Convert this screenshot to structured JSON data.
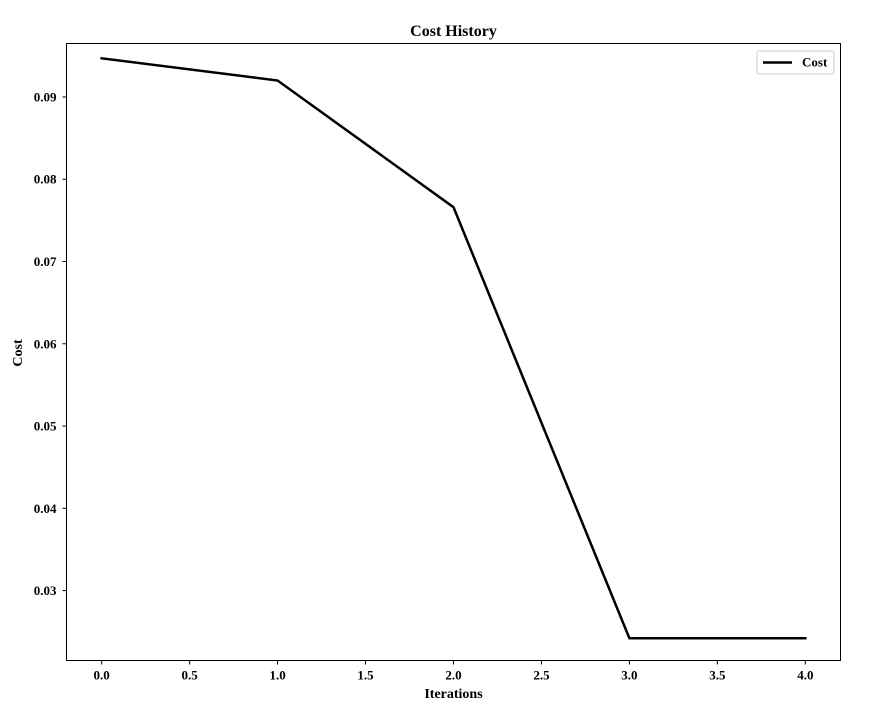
{
  "chart_data": {
    "type": "line",
    "title": "Cost History",
    "xlabel": "Iterations",
    "ylabel": "Cost",
    "xlim": [
      -0.2,
      4.2
    ],
    "ylim": [
      0.0215,
      0.0965
    ],
    "xticks": [
      0.0,
      0.5,
      1.0,
      1.5,
      2.0,
      2.5,
      3.0,
      3.5,
      4.0
    ],
    "xtick_labels": [
      "0.0",
      "0.5",
      "1.0",
      "1.5",
      "2.0",
      "2.5",
      "3.0",
      "3.5",
      "4.0"
    ],
    "yticks": [
      0.03,
      0.04,
      0.05,
      0.06,
      0.07,
      0.08,
      0.09
    ],
    "ytick_labels": [
      "0.03",
      "0.04",
      "0.05",
      "0.06",
      "0.07",
      "0.08",
      "0.09"
    ],
    "grid": false,
    "legend_position": "top-right",
    "series": [
      {
        "name": "Cost",
        "color": "#000000",
        "x": [
          0,
          1,
          2,
          3,
          4
        ],
        "y": [
          0.0947,
          0.092,
          0.0766,
          0.0242,
          0.0242
        ]
      }
    ]
  }
}
